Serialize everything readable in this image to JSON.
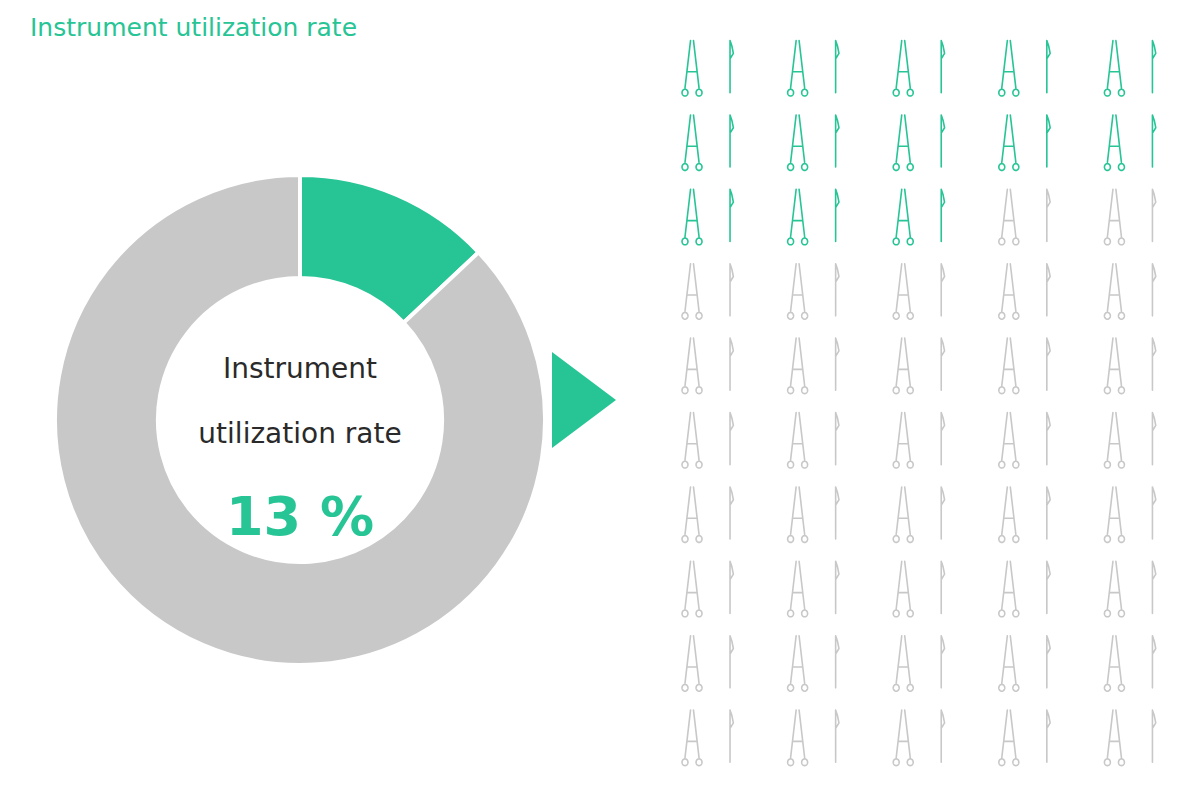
{
  "chart_data": [
    {
      "type": "donut",
      "title": "Instrument utilization rate",
      "values": [
        13,
        87
      ],
      "colors": [
        "#27C495",
        "#C8C8C8"
      ],
      "value_labels": [
        "13 %",
        null
      ],
      "annotations": [
        "Instrument",
        "utilization rate"
      ]
    },
    {
      "type": "pictogram",
      "values": [
        13,
        37
      ],
      "colors": [
        "#27C495",
        "#C8C8C8"
      ]
    }
  ]
}
